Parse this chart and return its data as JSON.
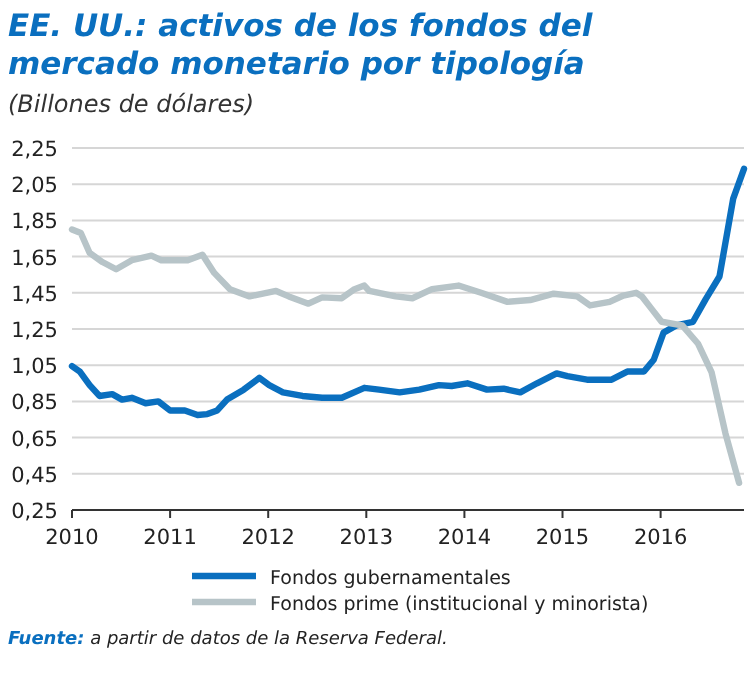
{
  "chart_data": {
    "type": "line",
    "title": "EE. UU.: activos de los fondos del mercado monetario por tipología",
    "subtitle": "(Billones de dólares)",
    "annotations": [
      "Fuente: a partir de datos de la Reserva Federal."
    ],
    "xlim": [
      2010,
      2016.85
    ],
    "xticks": [
      2010,
      2011,
      2012,
      2013,
      2014,
      2015,
      2016
    ],
    "ylim": [
      0.25,
      2.25
    ],
    "yticks": [
      {
        "value": 0.25,
        "label": "0,25"
      },
      {
        "value": 0.45,
        "label": "0,45"
      },
      {
        "value": 0.65,
        "label": "0,65"
      },
      {
        "value": 0.85,
        "label": "0,85"
      },
      {
        "value": 1.05,
        "label": "1,05"
      },
      {
        "value": 1.25,
        "label": "1,25"
      },
      {
        "value": 1.45,
        "label": "1,45"
      },
      {
        "value": 1.65,
        "label": "1,65"
      },
      {
        "value": 1.85,
        "label": "1,85"
      },
      {
        "value": 2.05,
        "label": "2,05"
      },
      {
        "value": 2.25,
        "label": "2,25"
      }
    ],
    "grid": "y",
    "legend": "bottom",
    "marker": "none",
    "line_style": "solid",
    "series": [
      {
        "name": "Fondos gubernamentales",
        "color": "#0a6fbf",
        "x": [
          2010.0,
          2010.08,
          2010.18,
          2010.28,
          2010.41,
          2010.51,
          2010.61,
          2010.75,
          2010.88,
          2011.0,
          2011.15,
          2011.28,
          2011.38,
          2011.48,
          2011.58,
          2011.75,
          2011.91,
          2012.01,
          2012.15,
          2012.35,
          2012.55,
          2012.75,
          2012.98,
          2013.13,
          2013.34,
          2013.54,
          2013.74,
          2013.87,
          2014.03,
          2014.23,
          2014.4,
          2014.57,
          2014.74,
          2014.94,
          2015.05,
          2015.25,
          2015.5,
          2015.66,
          2015.83,
          2015.93,
          2016.03,
          2016.16,
          2016.33,
          2016.46,
          2016.6,
          2016.74,
          2016.85
        ],
        "values": [
          1.045,
          1.015,
          0.94,
          0.88,
          0.89,
          0.86,
          0.87,
          0.84,
          0.85,
          0.8,
          0.8,
          0.775,
          0.78,
          0.8,
          0.86,
          0.915,
          0.98,
          0.94,
          0.9,
          0.88,
          0.87,
          0.87,
          0.925,
          0.915,
          0.9,
          0.915,
          0.94,
          0.935,
          0.95,
          0.915,
          0.92,
          0.9,
          0.95,
          1.005,
          0.99,
          0.97,
          0.97,
          1.015,
          1.015,
          1.08,
          1.23,
          1.27,
          1.29,
          1.415,
          1.54,
          1.97,
          2.135
        ]
      },
      {
        "name": "Fondos prime (institucional y minorista)",
        "color": "#b7c4c8",
        "x": [
          2010.0,
          2010.09,
          2010.18,
          2010.31,
          2010.45,
          2010.61,
          2010.81,
          2010.91,
          2011.18,
          2011.33,
          2011.45,
          2011.61,
          2011.81,
          2012.08,
          2012.21,
          2012.41,
          2012.55,
          2012.75,
          2012.88,
          2012.98,
          2013.03,
          2013.3,
          2013.47,
          2013.67,
          2013.94,
          2014.17,
          2014.44,
          2014.67,
          2014.91,
          2015.15,
          2015.28,
          2015.48,
          2015.62,
          2015.75,
          2015.81,
          2015.91,
          2016.01,
          2016.22,
          2016.38,
          2016.52,
          2016.66,
          2016.8
        ],
        "values": [
          1.8,
          1.78,
          1.67,
          1.62,
          1.58,
          1.63,
          1.655,
          1.63,
          1.63,
          1.66,
          1.56,
          1.47,
          1.43,
          1.46,
          1.43,
          1.39,
          1.425,
          1.42,
          1.47,
          1.49,
          1.46,
          1.43,
          1.42,
          1.47,
          1.49,
          1.45,
          1.4,
          1.41,
          1.445,
          1.43,
          1.38,
          1.4,
          1.435,
          1.45,
          1.43,
          1.36,
          1.29,
          1.27,
          1.17,
          1.01,
          0.675,
          0.4
        ]
      }
    ]
  }
}
